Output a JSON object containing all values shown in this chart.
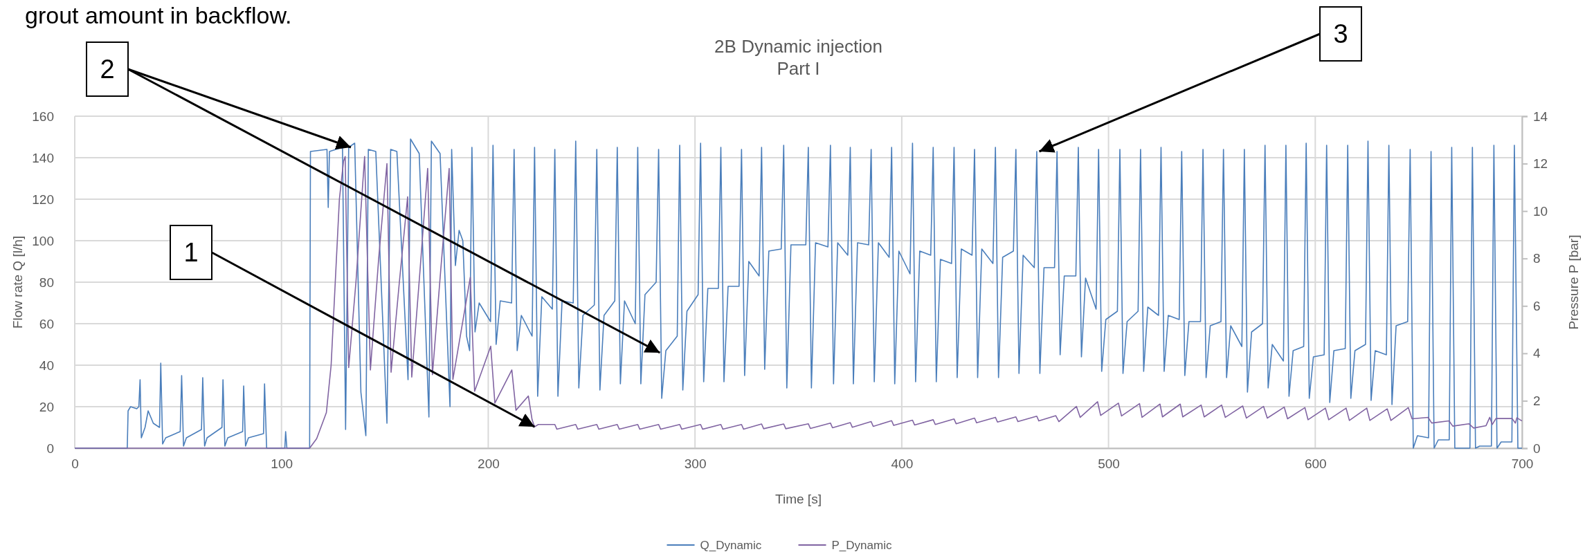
{
  "chart_data": {
    "type": "line",
    "title": "2B Dynamic injection",
    "subtitle": "Part I",
    "xlabel": "Time [s]",
    "ylabel": "Flow rate Q [l/h]",
    "y2label": "Pressure P [bar]",
    "xlim": [
      0,
      700
    ],
    "xticks": [
      0,
      100,
      200,
      300,
      400,
      500,
      600,
      700
    ],
    "ylim": [
      0,
      160
    ],
    "yticks": [
      0,
      20,
      40,
      60,
      80,
      100,
      120,
      140,
      160
    ],
    "y2lim": [
      0,
      14
    ],
    "y2ticks": [
      0,
      2,
      4,
      6,
      8,
      10,
      12,
      14
    ],
    "grid": true,
    "legend": "bottom",
    "annotations": [
      "grout amount in backflow.",
      {
        "text": "1",
        "x": 222.4,
        "y": 10.3
      },
      {
        "text": "2",
        "x": 283,
        "y": 46
      },
      {
        "text": "3",
        "x": 466.5,
        "y": 143
      }
    ],
    "series": [
      {
        "name": "Q_Dynamic",
        "color": "#4a7ebb",
        "x": [
          0,
          25.4,
          25.8,
          27,
          30,
          31,
          31.6,
          32.2,
          34,
          35.5,
          38,
          41,
          41.6,
          42.5,
          44,
          51,
          51.7,
          52.6,
          54,
          61.3,
          61.9,
          62.8,
          64,
          71.2,
          71.7,
          72.6,
          74,
          81.2,
          81.7,
          82.6,
          84,
          91.3,
          91.8,
          92.8,
          101.6,
          102,
          102.6,
          113.6,
          114,
          122,
          122.6,
          123.2,
          129.5,
          131,
          132.5,
          135.4,
          138.4,
          140.8,
          142,
          145.6,
          151,
          152.8,
          155.8,
          161.2,
          162.4,
          166.6,
          171.3,
          172.5,
          176.7,
          181.5,
          182.3,
          184.1,
          185.9,
          187.7,
          189.5,
          191,
          192.1,
          193.6,
          195.6,
          201.1,
          202.3,
          203.8,
          205.8,
          211.3,
          212.5,
          214,
          216,
          221.2,
          222.4,
          223.9,
          225.9,
          231,
          232.2,
          233.7,
          235.7,
          241.1,
          242.3,
          243.8,
          245.8,
          251.3,
          252.5,
          254,
          256,
          261.2,
          262.4,
          263.9,
          265.9,
          271.1,
          272.3,
          273.8,
          275.8,
          281.2,
          282.4,
          283.9,
          285.9,
          291.4,
          292.6,
          294.1,
          296.1,
          301.5,
          302.7,
          304.2,
          306.2,
          311.3,
          312.5,
          314,
          316,
          321.3,
          322.5,
          324,
          326,
          331,
          332.2,
          333.7,
          335.7,
          341.7,
          342.9,
          344.4,
          346.4,
          353.6,
          354.8,
          356.3,
          358.3,
          364.3,
          365.5,
          367,
          369,
          373.9,
          375.1,
          376.6,
          378.6,
          384,
          385.2,
          386.7,
          388.7,
          393.9,
          395.1,
          396.6,
          398.6,
          404,
          405.2,
          406.7,
          408.7,
          414,
          415.2,
          416.7,
          418.7,
          424.1,
          425.3,
          426.8,
          428.8,
          434,
          435.2,
          436.7,
          438.7,
          444.1,
          445.3,
          446.8,
          448.8,
          454,
          455.2,
          456.7,
          458.7,
          464.1,
          465.3,
          466.8,
          468.8,
          473.9,
          475.1,
          476.6,
          478.6,
          484.2,
          485.4,
          486.9,
          488.9,
          494,
          495.2,
          496.7,
          498.7,
          504.3,
          505.5,
          507,
          509,
          514.3,
          515.5,
          517,
          519,
          524.2,
          525.4,
          526.9,
          528.9,
          534.2,
          535.4,
          536.9,
          538.9,
          544.5,
          545.7,
          547.2,
          549.2,
          554.4,
          555.6,
          557.1,
          559.1,
          564.5,
          565.7,
          567.2,
          569.2,
          574.5,
          575.7,
          577.2,
          579.2,
          584.6,
          585.8,
          587.3,
          589.3,
          594.4,
          595.6,
          597.1,
          599.1,
          604.3,
          605.5,
          607,
          609,
          614.5,
          615.7,
          617.2,
          619.2,
          624.3,
          625.5,
          627,
          629,
          634.4,
          635.6,
          637.1,
          639.1,
          644.7,
          645.9,
          647.4,
          649.4,
          654.8,
          656,
          657.5,
          659.5,
          664.8,
          666,
          667.5,
          669.5,
          674.8,
          676,
          677.5,
          679.5,
          685.2,
          686.4,
          687.9,
          689.9,
          695.1,
          696.3,
          698,
          700
        ],
        "values": [
          0,
          0,
          18,
          20,
          19,
          20,
          33,
          5,
          10,
          18,
          12,
          10,
          41,
          2,
          5,
          8,
          35,
          1,
          5,
          9,
          34,
          1,
          5,
          10,
          33,
          1,
          5,
          8,
          30,
          1,
          5,
          7,
          31,
          0,
          0,
          8,
          0,
          0,
          143,
          144,
          116,
          143,
          145,
          9,
          145,
          147,
          27,
          6,
          144,
          143,
          12,
          144,
          143,
          33,
          149,
          142,
          15,
          148,
          142,
          20,
          144,
          88,
          105,
          100,
          54,
          47,
          145,
          56,
          70,
          61,
          146,
          50,
          71,
          70,
          144,
          47,
          64,
          54,
          145,
          25,
          73,
          67,
          144,
          25,
          71,
          70,
          148,
          29,
          64,
          69,
          144,
          28,
          64,
          71,
          145,
          31,
          71,
          60,
          145,
          31,
          74,
          80,
          144,
          24,
          47,
          54,
          146,
          28,
          66,
          74,
          147,
          32,
          77,
          77,
          145,
          32,
          78,
          78,
          144,
          35,
          90,
          83,
          145,
          38,
          95,
          96,
          146,
          29,
          98,
          98,
          145,
          29,
          99,
          97,
          146,
          31,
          99,
          93,
          145,
          31,
          99,
          98,
          144,
          32,
          99,
          92,
          145,
          31,
          95,
          84,
          147,
          32,
          95,
          93,
          145,
          32,
          91,
          89,
          145,
          34,
          96,
          93,
          144,
          34,
          96,
          89,
          145,
          34,
          92,
          95,
          144,
          36,
          93,
          87,
          143,
          36,
          87,
          87,
          143,
          45,
          83,
          83,
          145,
          44,
          82,
          67,
          144,
          37,
          62,
          66,
          144,
          36,
          61,
          66,
          144,
          37,
          68,
          64,
          145,
          37,
          64,
          62,
          143,
          35,
          61,
          61,
          144,
          34,
          59,
          61,
          144,
          34,
          59,
          49,
          144,
          27,
          56,
          60,
          146,
          29,
          50,
          42,
          146,
          25,
          47,
          49,
          147,
          24,
          44,
          45,
          146,
          22,
          47,
          48,
          146,
          24,
          47,
          50,
          148,
          23,
          47,
          45,
          146,
          21,
          59,
          61,
          144,
          0,
          6,
          5,
          143,
          0,
          4,
          4,
          145,
          0,
          0,
          0,
          145,
          0,
          1,
          1,
          146,
          0,
          3,
          3,
          146,
          0,
          0
        ]
      },
      {
        "name": "P_Dynamic",
        "color": "#8064a2",
        "axis": "y2",
        "x": [
          0,
          113.6,
          117,
          120,
          121.7,
          124,
          126,
          128,
          130,
          130.8,
          132.5,
          136,
          140.2,
          143,
          147,
          151,
          153,
          157,
          161,
          163,
          167,
          170.7,
          173,
          177,
          181.1,
          182.9,
          191.3,
          193.4,
          201.2,
          203.2,
          211.4,
          213.4,
          219.4,
          221.2,
          222.4,
          224.2,
          232.2,
          233.2,
          242.3,
          243.3,
          252.5,
          253.5,
          262.4,
          263.4,
          272.3,
          273.3,
          282.4,
          283.4,
          292.6,
          293.6,
          302.7,
          303.7,
          312.5,
          313.5,
          322.5,
          323.5,
          332.2,
          333.2,
          342.9,
          343.9,
          354.8,
          355.8,
          365.5,
          366.5,
          375.1,
          376.1,
          385.2,
          386.2,
          395.1,
          396.1,
          405.2,
          406.2,
          415.2,
          416.2,
          425.3,
          426.3,
          435.2,
          436.2,
          445.3,
          446.3,
          455.2,
          456.2,
          465.3,
          466.3,
          474.5,
          476,
          484.5,
          486.3,
          494.7,
          496.2,
          504.8,
          506.3,
          515,
          516.2,
          524.9,
          526.1,
          534.7,
          535.9,
          544.8,
          546.3,
          554.7,
          556.5,
          564.9,
          566.7,
          575,
          576.8,
          585,
          586.6,
          595,
          596.5,
          604.9,
          606.5,
          614.9,
          616.5,
          624.9,
          626.4,
          634.8,
          636.6,
          645,
          646.8,
          654.6,
          656.3,
          664.7,
          666.5,
          674.3,
          676.6,
          682.6,
          684.4,
          685.6,
          687.4,
          695.2,
          696.8,
          697.5,
          700
        ],
        "values": [
          0,
          0,
          0.4,
          1.1,
          1.5,
          3.5,
          7,
          10.5,
          12.1,
          12.3,
          3.4,
          7,
          12.3,
          3.3,
          8,
          12,
          3.2,
          7,
          10.6,
          3.0,
          7.5,
          11.8,
          3.1,
          7.5,
          11.8,
          2.9,
          7.2,
          2.4,
          4.3,
          1.9,
          3.3,
          1.6,
          2.2,
          1.2,
          0.9,
          1.0,
          1.0,
          0.8,
          1.0,
          0.8,
          1.0,
          0.8,
          1.0,
          0.8,
          1.0,
          0.8,
          1.0,
          0.8,
          1.0,
          0.8,
          1.0,
          0.8,
          1.0,
          0.8,
          1.0,
          0.8,
          1.02,
          0.82,
          1.02,
          0.82,
          1.03,
          0.83,
          1.06,
          0.86,
          1.08,
          0.88,
          1.12,
          0.92,
          1.16,
          0.96,
          1.18,
          0.98,
          1.2,
          1.0,
          1.23,
          1.03,
          1.27,
          1.07,
          1.3,
          1.1,
          1.32,
          1.12,
          1.35,
          1.15,
          1.37,
          1.12,
          1.76,
          1.3,
          1.96,
          1.38,
          1.9,
          1.36,
          1.88,
          1.3,
          1.86,
          1.32,
          1.86,
          1.32,
          1.82,
          1.32,
          1.82,
          1.3,
          1.78,
          1.27,
          1.76,
          1.27,
          1.73,
          1.24,
          1.71,
          1.2,
          1.69,
          1.2,
          1.69,
          1.17,
          1.69,
          1.17,
          1.66,
          1.17,
          1.71,
          1.24,
          1.3,
          1.06,
          1.15,
          0.93,
          1.03,
          0.85,
          0.95,
          1.3,
          1.0,
          1.25,
          1.25,
          1.06,
          1.28,
          1.15
        ]
      }
    ]
  }
}
